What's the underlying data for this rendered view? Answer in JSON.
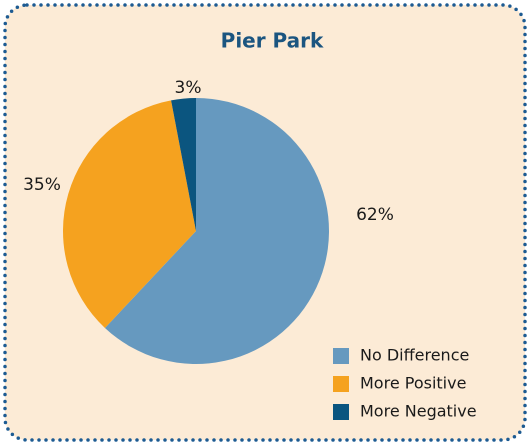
{
  "chart_data": {
    "type": "pie",
    "title": "Pier Park",
    "categories": [
      "No Difference",
      "More Positive",
      "More Negative"
    ],
    "values": [
      62,
      35,
      3
    ],
    "value_labels": [
      "62%",
      "35%",
      "3%"
    ],
    "colors": [
      "#6699bf",
      "#f5a21f",
      "#0b557f"
    ],
    "legend": "lower right"
  }
}
